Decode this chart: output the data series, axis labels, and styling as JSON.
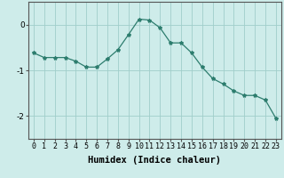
{
  "x": [
    0,
    1,
    2,
    3,
    4,
    5,
    6,
    7,
    8,
    9,
    10,
    11,
    12,
    13,
    14,
    15,
    16,
    17,
    18,
    19,
    20,
    21,
    22,
    23
  ],
  "y": [
    -0.62,
    -0.72,
    -0.72,
    -0.72,
    -0.8,
    -0.93,
    -0.93,
    -0.75,
    -0.55,
    -0.22,
    0.12,
    0.1,
    -0.07,
    -0.4,
    -0.4,
    -0.62,
    -0.93,
    -1.18,
    -1.3,
    -1.45,
    -1.55,
    -1.55,
    -1.65,
    -2.05
  ],
  "line_color": "#2d7d6e",
  "marker": "*",
  "marker_size": 3,
  "bg_color": "#ceecea",
  "grid_color": "#a0ceca",
  "xlabel": "Humidex (Indice chaleur)",
  "xlim": [
    -0.5,
    23.5
  ],
  "ylim": [
    -2.5,
    0.5
  ],
  "yticks": [
    0,
    -1,
    -2
  ],
  "xticks": [
    0,
    1,
    2,
    3,
    4,
    5,
    6,
    7,
    8,
    9,
    10,
    11,
    12,
    13,
    14,
    15,
    16,
    17,
    18,
    19,
    20,
    21,
    22,
    23
  ],
  "tick_fontsize": 6.0,
  "xlabel_fontsize": 7.5,
  "spine_color": "#555555"
}
